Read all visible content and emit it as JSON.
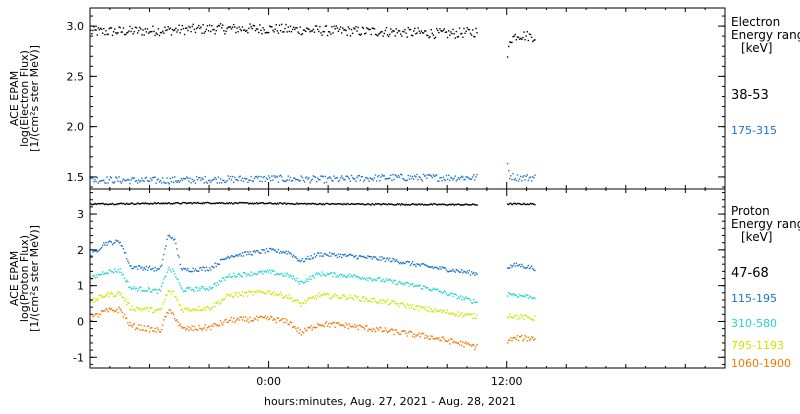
{
  "chart_data": {
    "type": "scatter",
    "title": "",
    "xlabel": "hours:minutes, Aug. 27, 2021 - Aug. 28, 2021",
    "x_ticks": [
      "0:00",
      "12:00"
    ],
    "x_range_hours": [
      -9,
      23
    ],
    "data_gap_hours": [
      10.5,
      12.0
    ],
    "panels": [
      {
        "name": "electron",
        "ylabel_lines": [
          "ACE EPAM",
          "log(Electron Flux)",
          "[1/(cm²s ster MeV)]"
        ],
        "ylim": [
          1.38,
          3.18
        ],
        "y_ticks": [
          1.5,
          2.0,
          2.5,
          3.0
        ],
        "y_tick_labels": [
          "1.5",
          "2.0",
          "2.5",
          "3.0"
        ],
        "legend_title": [
          "Electron",
          "Energy range",
          "[keV]"
        ],
        "series": [
          {
            "name": "38-53",
            "color": "#000000",
            "profile_x": [
              -9,
              -6,
              -3,
              0,
              3,
              6,
              9,
              10.5,
              12.0,
              12.1,
              12.5,
              13.4
            ],
            "profile_y": [
              2.95,
              2.96,
              2.98,
              2.98,
              2.96,
              2.95,
              2.93,
              2.95,
              2.64,
              2.87,
              2.92,
              2.9
            ],
            "noise": 0.05
          },
          {
            "name": "175-315",
            "color": "#1a73c8",
            "profile_x": [
              -9,
              -6,
              -3,
              0,
              3,
              6,
              9,
              10.5,
              12.0,
              12.1,
              12.5,
              13.4
            ],
            "profile_y": [
              1.48,
              1.47,
              1.48,
              1.49,
              1.48,
              1.5,
              1.5,
              1.5,
              1.65,
              1.52,
              1.5,
              1.5
            ],
            "noise": 0.035
          }
        ]
      },
      {
        "name": "proton",
        "ylabel_lines": [
          "ACE EPAM",
          "log(Proton Flux)",
          "[1/(cm²s ster MeV)]"
        ],
        "ylim": [
          -1.3,
          3.7
        ],
        "y_ticks": [
          -1,
          0,
          1,
          2,
          3
        ],
        "y_tick_labels": [
          "-1",
          "0",
          "1",
          "2",
          "3"
        ],
        "legend_title": [
          "Proton",
          "Energy range",
          "[keV]"
        ],
        "series": [
          {
            "name": "47-68",
            "color": "#000000",
            "profile_x": [
              -9,
              -3,
              3,
              10.5,
              12.1,
              13.4
            ],
            "profile_y": [
              3.3,
              3.33,
              3.3,
              3.28,
              3.3,
              3.3
            ],
            "noise": 0.02
          },
          {
            "name": "115-195",
            "color": "#1a73c8",
            "profile_x": [
              -9,
              -8.3,
              -7.5,
              -7,
              -6,
              -5.5,
              -5.1,
              -4.8,
              -4.4,
              -3,
              -2,
              0,
              1,
              1.6,
              2.5,
              4,
              6,
              8,
              10.5,
              12.1,
              12.5,
              13.4
            ],
            "profile_y": [
              1.85,
              2.2,
              2.25,
              1.55,
              1.5,
              1.45,
              2.4,
              2.35,
              1.45,
              1.5,
              1.85,
              2.0,
              1.95,
              1.7,
              1.9,
              1.85,
              1.75,
              1.55,
              1.35,
              1.55,
              1.6,
              1.5
            ],
            "noise": 0.06
          },
          {
            "name": "310-580",
            "color": "#22d3d3",
            "profile_x": [
              -9,
              -8.3,
              -7.5,
              -7,
              -6,
              -5.5,
              -5.1,
              -4.8,
              -4.4,
              -3,
              -2,
              0,
              1,
              1.6,
              2.5,
              4,
              6,
              8,
              10.5,
              12.1,
              12.5,
              13.4
            ],
            "profile_y": [
              1.2,
              1.4,
              1.45,
              0.95,
              0.9,
              0.85,
              1.5,
              1.4,
              0.9,
              0.95,
              1.3,
              1.4,
              1.3,
              1.1,
              1.35,
              1.3,
              1.15,
              0.95,
              0.55,
              0.8,
              0.75,
              0.7
            ],
            "noise": 0.06
          },
          {
            "name": "795-1193",
            "color": "#c8e600",
            "profile_x": [
              -9,
              -8.3,
              -7.5,
              -7,
              -6,
              -5.5,
              -5.1,
              -4.8,
              -4.4,
              -3,
              -2,
              0,
              1,
              1.6,
              2.5,
              4,
              6,
              8,
              10.5,
              12.1,
              12.5,
              13.4
            ],
            "profile_y": [
              0.55,
              0.75,
              0.8,
              0.4,
              0.35,
              0.3,
              0.85,
              0.8,
              0.35,
              0.4,
              0.75,
              0.85,
              0.7,
              0.5,
              0.75,
              0.7,
              0.55,
              0.35,
              0.15,
              0.2,
              0.15,
              0.1
            ],
            "noise": 0.07
          },
          {
            "name": "1060-1900",
            "color": "#f07800",
            "profile_x": [
              -9,
              -8.3,
              -7.5,
              -7,
              -6,
              -5.5,
              -5.1,
              -4.8,
              -4.4,
              -3,
              -2,
              0,
              1,
              1.6,
              2.5,
              4,
              6,
              8,
              10.5,
              12.1,
              12.5,
              13.4
            ],
            "profile_y": [
              0.1,
              0.3,
              0.35,
              -0.1,
              -0.2,
              -0.25,
              0.3,
              0.2,
              -0.2,
              -0.15,
              0.05,
              0.1,
              0.0,
              -0.3,
              -0.05,
              -0.1,
              -0.25,
              -0.4,
              -0.7,
              -0.5,
              -0.45,
              -0.45
            ],
            "noise": 0.08
          }
        ]
      }
    ]
  }
}
